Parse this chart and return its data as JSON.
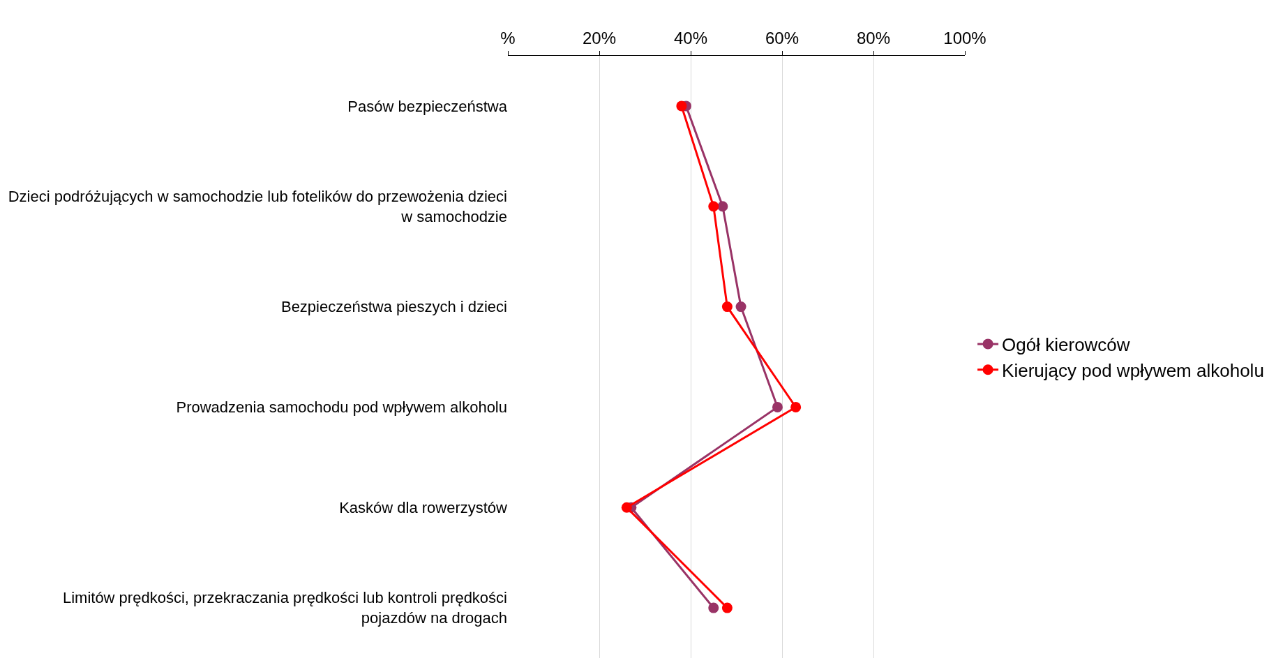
{
  "chart_data": {
    "type": "line",
    "orientation": "horizontal",
    "categories": [
      "Pasów bezpieczeństwa",
      "Dzieci podróżujących w samochodzie lub fotelików do przewożenia dzieci w samochodzie",
      "Bezpieczeństwa pieszych i dzieci",
      "Prowadzenia samochodu pod wpływem alkoholu",
      "Kasków dla rowerzystów",
      "Limitów prędkości, przekraczania prędkości lub kontroli prędkości pojazdów na drogach"
    ],
    "series": [
      {
        "name": "Ogół kierowców",
        "color": "#993366",
        "values": [
          39,
          47,
          51,
          59,
          27,
          45
        ]
      },
      {
        "name": "Kierujący pod wpływem alkoholu",
        "color": "#ff0000",
        "values": [
          38,
          45,
          48,
          63,
          26,
          48
        ]
      }
    ],
    "xlim": [
      0,
      100
    ],
    "xticks": [
      {
        "value": 0,
        "label": "%"
      },
      {
        "value": 20,
        "label": "20%"
      },
      {
        "value": 40,
        "label": "40%"
      },
      {
        "value": 60,
        "label": "60%"
      },
      {
        "value": 80,
        "label": "80%"
      },
      {
        "value": 100,
        "label": "100%"
      }
    ],
    "grid": "x",
    "legend": "right",
    "marker": "circle",
    "line_style": "solid"
  }
}
